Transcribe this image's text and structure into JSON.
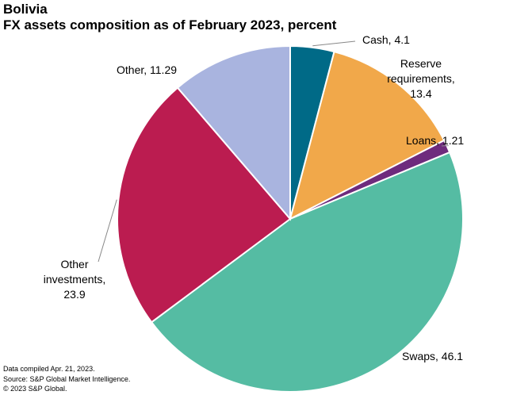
{
  "chart_data": {
    "type": "pie",
    "title": "Bolivia",
    "subtitle": "FX assets composition as of February 2023, percent",
    "slices": [
      {
        "label": "Cash, 4.1",
        "value": 4.1,
        "color": "#006a87"
      },
      {
        "label": "Reserve requirements, 13.4",
        "value": 13.4,
        "color": "#f1a84a"
      },
      {
        "label": "Loans, 1.21",
        "value": 1.21,
        "color": "#6e2b7d"
      },
      {
        "label": "Swaps, 46.1",
        "value": 46.1,
        "color": "#55bca3"
      },
      {
        "label": "Other investments, 23.9",
        "value": 23.9,
        "color": "#bb1c50"
      },
      {
        "label": "Other, 11.29",
        "value": 11.29,
        "color": "#a9b4df"
      }
    ],
    "label_lines": [
      [
        "Cash, 4.1"
      ],
      [
        "Reserve",
        "requirements,",
        "13.4"
      ],
      [
        "Loans, 1.21"
      ],
      [
        "Swaps, 46.1"
      ],
      [
        "Other",
        "investments,",
        "23.9"
      ],
      [
        "Other, 11.29"
      ]
    ]
  },
  "footer": {
    "compiled": "Data compiled Apr. 21, 2023.",
    "source": "Source: S&P Global Market Intelligence.",
    "copyright": "© 2023 S&P Global."
  }
}
